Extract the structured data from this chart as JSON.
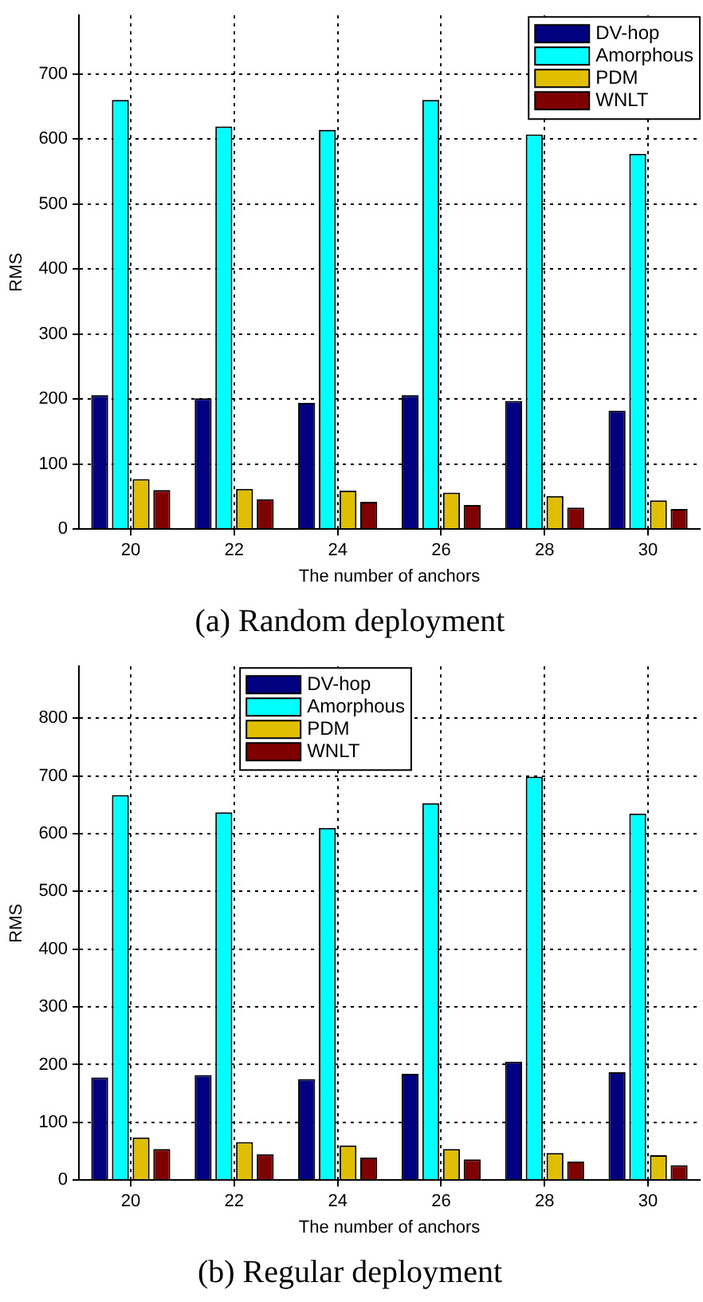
{
  "chart_data": [
    {
      "type": "bar",
      "title": "(a) Random deployment",
      "xlabel": "The number of anchors",
      "ylabel": "RMS",
      "categories": [
        "20",
        "22",
        "24",
        "26",
        "28",
        "30"
      ],
      "series": [
        {
          "name": "DV-hop",
          "color": "#000080",
          "values": [
            206,
            201,
            194,
            206,
            197,
            182
          ]
        },
        {
          "name": "Amorphous",
          "color": "#00ffff",
          "values": [
            660,
            619,
            614,
            660,
            607,
            577
          ]
        },
        {
          "name": "PDM",
          "color": "#dfbf00",
          "values": [
            77,
            62,
            59,
            56,
            51,
            44
          ]
        },
        {
          "name": "WNLT",
          "color": "#800000",
          "values": [
            60,
            46,
            42,
            37,
            33,
            31
          ]
        }
      ],
      "ylim": [
        0,
        790
      ],
      "yticks": [
        0,
        100,
        200,
        300,
        400,
        500,
        600,
        700
      ],
      "grid": true,
      "legend": "top right"
    },
    {
      "type": "bar",
      "title": "(b) Regular deployment",
      "xlabel": "The number of anchors",
      "ylabel": "RMS",
      "categories": [
        "20",
        "22",
        "24",
        "26",
        "28",
        "30"
      ],
      "series": [
        {
          "name": "DV-hop",
          "color": "#000080",
          "values": [
            178,
            182,
            175,
            184,
            205,
            187
          ]
        },
        {
          "name": "Amorphous",
          "color": "#00ffff",
          "values": [
            667,
            637,
            610,
            653,
            699,
            635
          ]
        },
        {
          "name": "PDM",
          "color": "#dfbf00",
          "values": [
            74,
            66,
            60,
            54,
            47,
            43
          ]
        },
        {
          "name": "WNLT",
          "color": "#800000",
          "values": [
            54,
            45,
            39,
            36,
            32,
            26
          ]
        }
      ],
      "ylim": [
        0,
        890
      ],
      "yticks": [
        0,
        100,
        200,
        300,
        400,
        500,
        600,
        700,
        800
      ],
      "grid": true,
      "legend": "top"
    }
  ]
}
